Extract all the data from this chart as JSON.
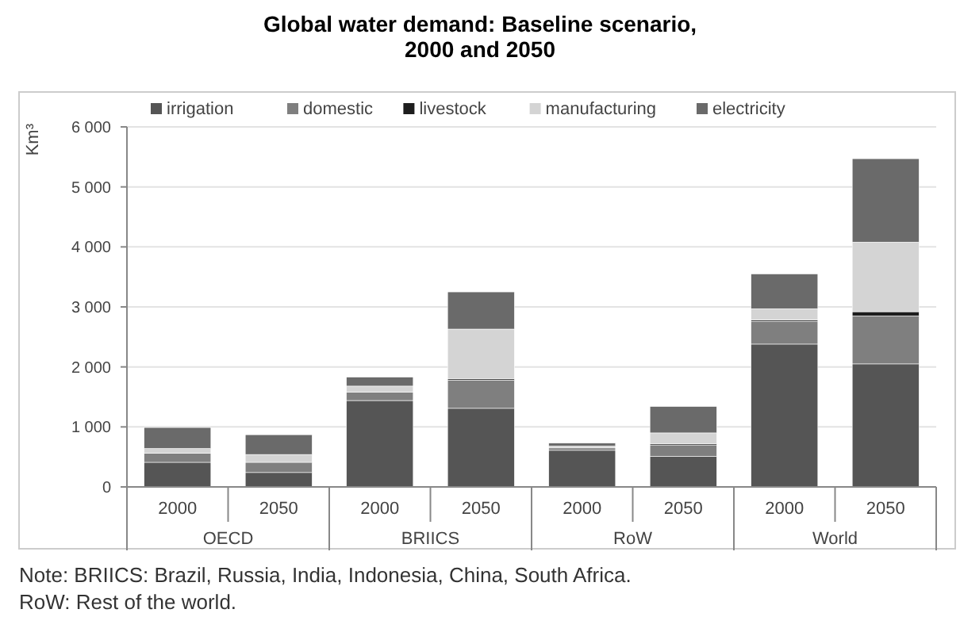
{
  "chart_data": {
    "type": "bar",
    "title": "Global water demand: Baseline scenario, 2000 and 2050",
    "ylabel": "Km³",
    "stacked": true,
    "legend": "top",
    "grid": "y",
    "categories": [
      "2000",
      "2050",
      "2000",
      "2050",
      "2000",
      "2050",
      "2000",
      "2050"
    ],
    "series": [
      {
        "name": "irrigation",
        "color": "#555555",
        "values": [
          410,
          240,
          1440,
          1310,
          610,
          510,
          2380,
          2050
        ]
      },
      {
        "name": "domestic",
        "color": "#7f7f7f",
        "values": [
          150,
          170,
          140,
          470,
          40,
          190,
          380,
          800
        ]
      },
      {
        "name": "livestock",
        "color": "#1e1e1e",
        "values": [
          null,
          null,
          null,
          20,
          null,
          20,
          20,
          70
        ]
      },
      {
        "name": "manufacturing",
        "color": "#d4d4d4",
        "values": [
          80,
          130,
          100,
          830,
          30,
          180,
          190,
          1160
        ]
      },
      {
        "name": "electricity",
        "color": "#6a6a6a",
        "values": [
          350,
          330,
          150,
          620,
          50,
          440,
          580,
          1390
        ]
      }
    ],
    "ylim": [
      0,
      6000
    ],
    "yticks": [
      0,
      {
        "value": 1000,
        "label": "1 000"
      },
      {
        "value": 2000,
        "label": "2 000"
      },
      {
        "value": 3000,
        "label": "3 000"
      },
      {
        "value": 4000,
        "label": "4 000"
      },
      {
        "value": 5000,
        "label": "5 000"
      },
      {
        "value": 6000,
        "label": "6 000"
      }
    ],
    "annotations": [
      "OECD",
      "BRIICS",
      "RoW",
      "World",
      "Note: BRIICS: Brazil, Russia, India, Indonesia, China, South Africa. RoW: Rest of the world."
    ]
  }
}
